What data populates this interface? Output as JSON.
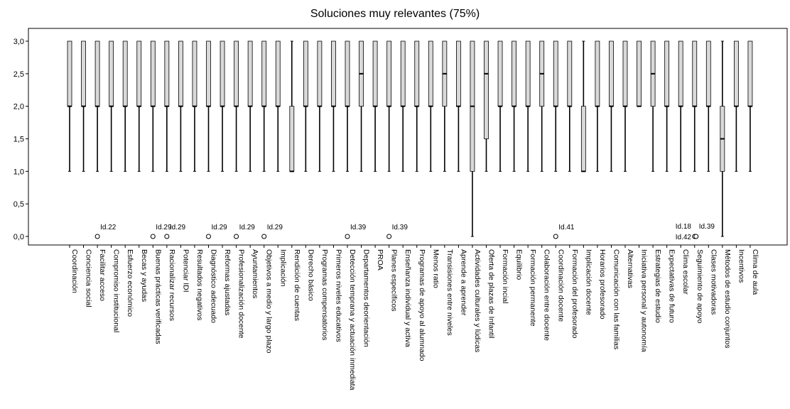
{
  "chart_data": {
    "type": "boxplot",
    "title": "Soluciones muy relevantes (75%)",
    "xlabel": "",
    "ylabel": "",
    "ylim": [
      0,
      3
    ],
    "yticks": [
      "0,0",
      "0,5",
      "1,0",
      "1,5",
      "2,0",
      "2,5",
      "3,0"
    ],
    "ytick_values": [
      0,
      0.5,
      1,
      1.5,
      2,
      2.5,
      3
    ],
    "grid": false,
    "box_color": "#d9d9d9",
    "categories": [
      "Coordinación",
      "Conciencia social",
      "Facilitar acceso",
      "Compromiso institucional",
      "Esfuerzo económico",
      "Becas y ayudas",
      "Buenas prácticas verificadas",
      "Racionalizar recursos",
      "Potenciar IDI",
      "Resultados negativos",
      "Diagnóstico adecuado",
      "Reformas ajustadas",
      "Profesionalización docente",
      "Ayuntamientos",
      "Objetivos a medio y largo plazo",
      "Implicación",
      "Rendición de cuentas",
      "Derecho básico",
      "Programas compensatorios",
      "Primeros niveles educativos",
      "Detección temprana y actuación inmediata",
      "Departamentos deorientación",
      "PROA",
      "Planes específicos",
      "Enseñanza individual y activa",
      "Programas de apoyo al alumnado",
      "Menos ratio",
      "Transisiones entre niveles",
      "Aprende a aprender",
      "Actividades culturales y lúdicas",
      "Oferta de plazas de Infantil",
      "Formación incial",
      "Equilibrio",
      "Formación permanente",
      "Colaboración entre docente",
      "Coordinación docente",
      "Formación del profesorado",
      "Implicación docente",
      "Horarios profesorado",
      "Comunicación con las familias",
      "Alternativas",
      "Iniciativa personal y autonomía",
      "Estrategias de estudio",
      "Expectativas de futuro",
      "Clima escolar",
      "Seguimiento de apoyo",
      "Clases motivadoras",
      "Métodos de estudio conjuntos",
      "Incentivos",
      "Clima de aula"
    ],
    "boxes": [
      {
        "min": 1,
        "q1": 2,
        "median": 2,
        "q3": 3,
        "max": 3
      },
      {
        "min": 1,
        "q1": 2,
        "median": 2,
        "q3": 3,
        "max": 3
      },
      {
        "min": 1,
        "q1": 2,
        "median": 2,
        "q3": 3,
        "max": 3
      },
      {
        "min": 1,
        "q1": 2,
        "median": 2,
        "q3": 3,
        "max": 3
      },
      {
        "min": 1,
        "q1": 2,
        "median": 2,
        "q3": 3,
        "max": 3
      },
      {
        "min": 1,
        "q1": 2,
        "median": 2,
        "q3": 3,
        "max": 3
      },
      {
        "min": 1,
        "q1": 2,
        "median": 2,
        "q3": 3,
        "max": 3
      },
      {
        "min": 1,
        "q1": 2,
        "median": 2,
        "q3": 3,
        "max": 3
      },
      {
        "min": 1,
        "q1": 2,
        "median": 2,
        "q3": 3,
        "max": 3
      },
      {
        "min": 1,
        "q1": 2,
        "median": 2,
        "q3": 3,
        "max": 3
      },
      {
        "min": 1,
        "q1": 2,
        "median": 2,
        "q3": 3,
        "max": 3
      },
      {
        "min": 1,
        "q1": 2,
        "median": 2,
        "q3": 3,
        "max": 3
      },
      {
        "min": 1,
        "q1": 2,
        "median": 2,
        "q3": 3,
        "max": 3
      },
      {
        "min": 1,
        "q1": 2,
        "median": 2,
        "q3": 3,
        "max": 3
      },
      {
        "min": 1,
        "q1": 2,
        "median": 2,
        "q3": 3,
        "max": 3
      },
      {
        "min": 1,
        "q1": 2,
        "median": 2,
        "q3": 3,
        "max": 3
      },
      {
        "min": 1,
        "q1": 1,
        "median": 1,
        "q3": 2,
        "max": 3
      },
      {
        "min": 1,
        "q1": 2,
        "median": 2,
        "q3": 3,
        "max": 3
      },
      {
        "min": 1,
        "q1": 2,
        "median": 2,
        "q3": 3,
        "max": 3
      },
      {
        "min": 1,
        "q1": 2,
        "median": 2,
        "q3": 3,
        "max": 3
      },
      {
        "min": 1,
        "q1": 2,
        "median": 2,
        "q3": 3,
        "max": 3
      },
      {
        "min": 1,
        "q1": 2,
        "median": 2.5,
        "q3": 3,
        "max": 3
      },
      {
        "min": 1,
        "q1": 2,
        "median": 2,
        "q3": 3,
        "max": 3
      },
      {
        "min": 1,
        "q1": 2,
        "median": 2,
        "q3": 3,
        "max": 3
      },
      {
        "min": 1,
        "q1": 2,
        "median": 2,
        "q3": 3,
        "max": 3
      },
      {
        "min": 1,
        "q1": 2,
        "median": 2,
        "q3": 3,
        "max": 3
      },
      {
        "min": 1,
        "q1": 2,
        "median": 2,
        "q3": 3,
        "max": 3
      },
      {
        "min": 1,
        "q1": 2,
        "median": 2.5,
        "q3": 3,
        "max": 3
      },
      {
        "min": 1,
        "q1": 2,
        "median": 2,
        "q3": 3,
        "max": 3
      },
      {
        "min": 0,
        "q1": 1,
        "median": 2,
        "q3": 3,
        "max": 3
      },
      {
        "min": 1,
        "q1": 1.5,
        "median": 2.5,
        "q3": 3,
        "max": 3
      },
      {
        "min": 1,
        "q1": 2,
        "median": 2,
        "q3": 3,
        "max": 3
      },
      {
        "min": 1,
        "q1": 2,
        "median": 2,
        "q3": 3,
        "max": 3
      },
      {
        "min": 1,
        "q1": 2,
        "median": 2,
        "q3": 3,
        "max": 3
      },
      {
        "min": 1,
        "q1": 2,
        "median": 2.5,
        "q3": 3,
        "max": 3
      },
      {
        "min": 1,
        "q1": 2,
        "median": 2,
        "q3": 3,
        "max": 3
      },
      {
        "min": 1,
        "q1": 2,
        "median": 2,
        "q3": 3,
        "max": 3
      },
      {
        "min": 1,
        "q1": 1,
        "median": 1,
        "q3": 2,
        "max": 3
      },
      {
        "min": 1,
        "q1": 2,
        "median": 2,
        "q3": 3,
        "max": 3
      },
      {
        "min": 1,
        "q1": 2,
        "median": 2,
        "q3": 3,
        "max": 3
      },
      {
        "min": 1,
        "q1": 2,
        "median": 2,
        "q3": 3,
        "max": 3
      },
      {
        "min": 2,
        "q1": 2,
        "median": 2,
        "q3": 3,
        "max": 3
      },
      {
        "min": 1,
        "q1": 2,
        "median": 2.5,
        "q3": 3,
        "max": 3
      },
      {
        "min": 1,
        "q1": 2,
        "median": 2,
        "q3": 3,
        "max": 3
      },
      {
        "min": 1,
        "q1": 2,
        "median": 2,
        "q3": 3,
        "max": 3
      },
      {
        "min": 1,
        "q1": 2,
        "median": 2,
        "q3": 3,
        "max": 3
      },
      {
        "min": 1,
        "q1": 2,
        "median": 2,
        "q3": 3,
        "max": 3
      },
      {
        "min": 0,
        "q1": 1,
        "median": 1.5,
        "q3": 2,
        "max": 3
      },
      {
        "min": 1,
        "q1": 2,
        "median": 2,
        "q3": 3,
        "max": 3
      },
      {
        "min": 1,
        "q1": 2,
        "median": 2,
        "q3": 3,
        "max": 3
      }
    ],
    "outliers": [
      {
        "category": "Facilitar acceso",
        "value": 0,
        "labels": [
          "Id.22"
        ]
      },
      {
        "category": "Buenas prácticas verificadas",
        "value": 0,
        "labels": [
          "Id.29"
        ]
      },
      {
        "category": "Racionalizar recursos",
        "value": 0,
        "labels": [
          "Id.29"
        ]
      },
      {
        "category": "Diagnóstico adecuado",
        "value": 0,
        "labels": [
          "Id.29"
        ]
      },
      {
        "category": "Profesionalización docente",
        "value": 0,
        "labels": [
          "Id.29"
        ]
      },
      {
        "category": "Objetivos a medio y largo plazo",
        "value": 0,
        "labels": [
          "Id.29"
        ]
      },
      {
        "category": "Detección temprana y actuación inmediata",
        "value": 0,
        "labels": [
          "Id.39"
        ]
      },
      {
        "category": "Planes específicos",
        "value": 0,
        "labels": [
          "Id.39"
        ]
      },
      {
        "category": "Coordinación docente",
        "value": 0,
        "labels": [
          "Id.41"
        ]
      },
      {
        "category": "Seguimiento de apoyo",
        "value": 0,
        "labels": [
          "Id.18",
          "Id.42",
          "Id.39"
        ]
      }
    ]
  }
}
